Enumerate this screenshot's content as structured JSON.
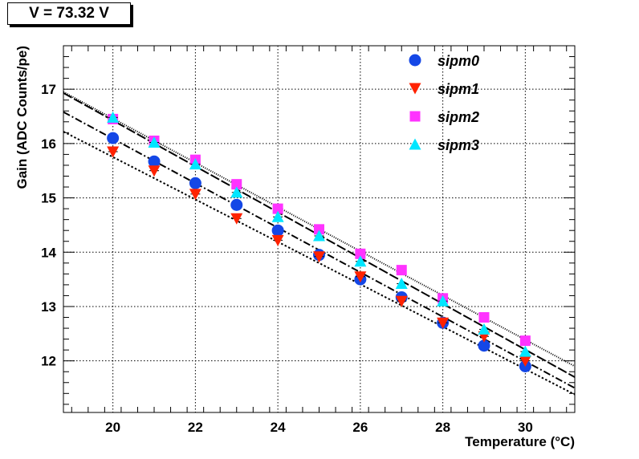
{
  "title": "V = 73.32 V",
  "chart_data": {
    "type": "scatter",
    "xlabel": "Temperature (°C)",
    "ylabel": "Gain (ADC Counts/pe)",
    "xlim": [
      18.8,
      31.2
    ],
    "ylim": [
      11.05,
      17.8
    ],
    "x_ticks": [
      20,
      22,
      24,
      26,
      28,
      30
    ],
    "y_ticks": [
      12,
      13,
      14,
      15,
      16,
      17
    ],
    "grid": true,
    "legend_position": "top-right",
    "x": [
      20,
      21,
      22,
      23,
      24,
      25,
      26,
      27,
      28,
      29,
      30
    ],
    "series": [
      {
        "name": "sipm0",
        "marker": "circle",
        "color": "#1447e6",
        "values": [
          16.1,
          15.67,
          15.27,
          14.87,
          14.4,
          13.95,
          13.5,
          13.17,
          12.7,
          12.28,
          11.9
        ],
        "fit": {
          "line": "dash-dot",
          "x_range": [
            18.8,
            31.2
          ],
          "y_range": [
            16.58,
            11.5
          ]
        }
      },
      {
        "name": "sipm1",
        "marker": "triangle-down",
        "color": "#ff2200",
        "values": [
          15.85,
          15.5,
          15.07,
          14.62,
          14.22,
          13.92,
          13.55,
          13.1,
          12.7,
          12.45,
          12.0
        ],
        "fit": {
          "line": "dotted",
          "x_range": [
            18.8,
            31.2
          ],
          "y_range": [
            16.22,
            11.38
          ]
        }
      },
      {
        "name": "sipm2",
        "marker": "square",
        "color": "#ff33ff",
        "values": [
          16.45,
          16.05,
          15.7,
          15.25,
          14.8,
          14.42,
          13.97,
          13.67,
          13.15,
          12.8,
          12.37
        ],
        "fit": {
          "line": "fine-dotted",
          "x_range": [
            18.8,
            31.2
          ],
          "y_range": [
            16.95,
            11.9
          ]
        }
      },
      {
        "name": "sipm3",
        "marker": "triangle-up",
        "color": "#00e6ff",
        "values": [
          16.48,
          16.02,
          15.62,
          15.1,
          14.65,
          14.3,
          13.83,
          13.42,
          13.1,
          12.58,
          12.17
        ],
        "fit": {
          "line": "long-dash",
          "x_range": [
            18.8,
            31.2
          ],
          "y_range": [
            16.93,
            11.7
          ]
        }
      }
    ]
  }
}
